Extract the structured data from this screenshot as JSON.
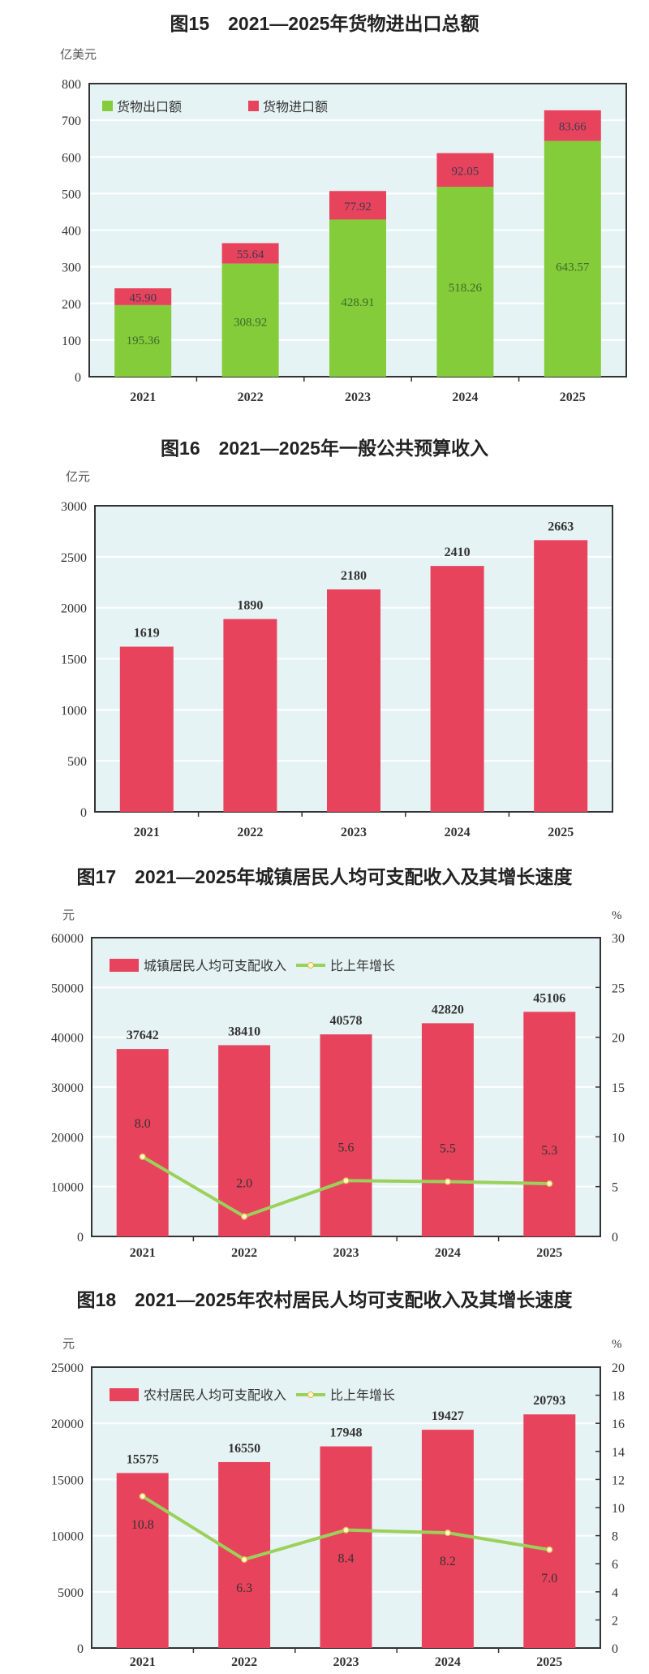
{
  "chart_data": [
    {
      "type": "bar",
      "stacked": true,
      "title": "图15　2021—2025年货物进出口总额",
      "ylabel": "亿美元",
      "categories": [
        "2021",
        "2022",
        "2023",
        "2024",
        "2025"
      ],
      "ylim": [
        0,
        800
      ],
      "yticks": [
        "0",
        "100",
        "200",
        "300",
        "400",
        "500",
        "600",
        "700",
        "800"
      ],
      "grid": true,
      "legend_position": "top-left",
      "series": [
        {
          "name": "货物出口额",
          "color": "#84cc3a",
          "values": [
            195.36,
            308.92,
            428.91,
            518.26,
            643.57
          ],
          "labels": [
            "195.36",
            "308.92",
            "428.91",
            "518.26",
            "643.57"
          ]
        },
        {
          "name": "货物进口额",
          "color": "#e8435c",
          "values": [
            45.9,
            55.64,
            77.92,
            92.05,
            83.66
          ],
          "labels": [
            "45.90",
            "55.64",
            "77.92",
            "92.05",
            "83.66"
          ]
        }
      ]
    },
    {
      "type": "bar",
      "title": "图16　2021—2025年一般公共预算收入",
      "ylabel": "亿元",
      "categories": [
        "2021",
        "2022",
        "2023",
        "2024",
        "2025"
      ],
      "ylim": [
        0,
        3000
      ],
      "yticks": [
        "0",
        "500",
        "1000",
        "1500",
        "2000",
        "2500",
        "3000"
      ],
      "grid": true,
      "series": [
        {
          "name": "一般公共预算收入",
          "color": "#e8435c",
          "values": [
            1619,
            1890,
            2180,
            2410,
            2663
          ],
          "labels": [
            "1619",
            "1890",
            "2180",
            "2410",
            "2663"
          ]
        }
      ]
    },
    {
      "type": "bar",
      "title": "图17　2021—2025年城镇居民人均可支配收入及其增长速度",
      "ylabel": "元",
      "y2label": "%",
      "categories": [
        "2021",
        "2022",
        "2023",
        "2024",
        "2025"
      ],
      "ylim": [
        0,
        60000
      ],
      "yticks": [
        "0",
        "10000",
        "20000",
        "30000",
        "40000",
        "50000",
        "60000"
      ],
      "y2lim": [
        0,
        30
      ],
      "y2ticks": [
        "0",
        "5",
        "10",
        "15",
        "20",
        "25",
        "30"
      ],
      "grid": true,
      "legend_position": "top-left",
      "series": [
        {
          "name": "城镇居民人均可支配收入",
          "kind": "bar",
          "color": "#e8435c",
          "values": [
            37642,
            38410,
            40578,
            42820,
            45106
          ],
          "labels": [
            "37642",
            "38410",
            "40578",
            "42820",
            "45106"
          ]
        },
        {
          "name": "比上年增长",
          "kind": "line",
          "axis": "right",
          "color": "#9bd15a",
          "values": [
            8.0,
            2.0,
            5.6,
            5.5,
            5.3
          ],
          "labels": [
            "8.0",
            "2.0",
            "5.6",
            "5.5",
            "5.3"
          ],
          "label_side": "above"
        }
      ]
    },
    {
      "type": "bar",
      "title": "图18　2021—2025年农村居民人均可支配收入及其增长速度",
      "ylabel": "元",
      "y2label": "%",
      "categories": [
        "2021",
        "2022",
        "2023",
        "2024",
        "2025"
      ],
      "ylim": [
        0,
        25000
      ],
      "yticks": [
        "0",
        "5000",
        "10000",
        "15000",
        "20000",
        "25000"
      ],
      "y2lim": [
        0,
        20
      ],
      "y2ticks": [
        "0",
        "2",
        "4",
        "6",
        "8",
        "10",
        "12",
        "14",
        "16",
        "18",
        "20"
      ],
      "grid": true,
      "legend_position": "top-left",
      "series": [
        {
          "name": "农村居民人均可支配收入",
          "kind": "bar",
          "color": "#e8435c",
          "values": [
            15575,
            16550,
            17948,
            19427,
            20793
          ],
          "labels": [
            "15575",
            "16550",
            "17948",
            "19427",
            "20793"
          ]
        },
        {
          "name": "比上年增长",
          "kind": "line",
          "axis": "right",
          "color": "#9bd15a",
          "values": [
            10.8,
            6.3,
            8.4,
            8.2,
            7.0
          ],
          "labels": [
            "10.8",
            "6.3",
            "8.4",
            "8.2",
            "7.0"
          ],
          "label_side": "below"
        }
      ]
    }
  ]
}
